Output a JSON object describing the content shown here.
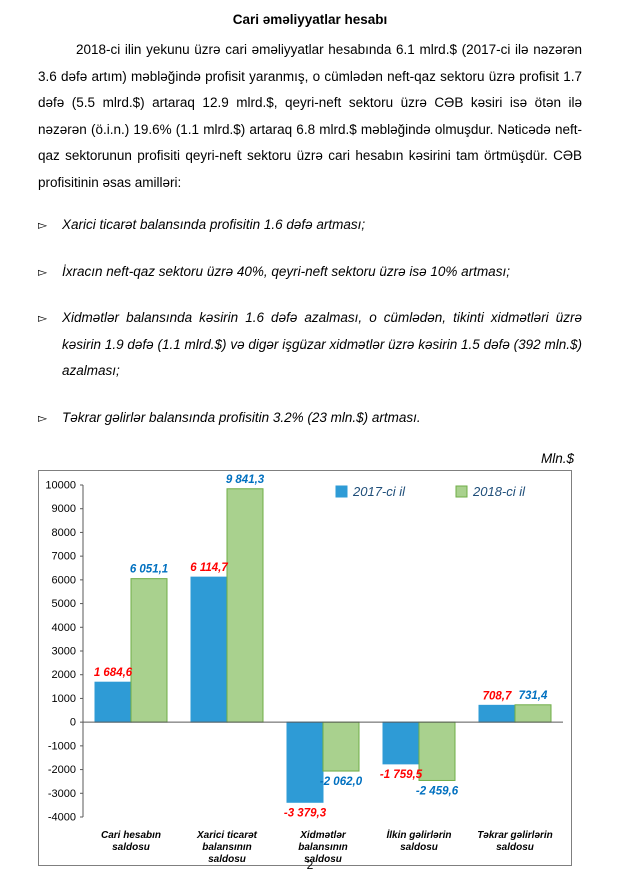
{
  "document": {
    "title": "Cari əməliyyatlar hesabı",
    "paragraph": "2018-ci ilin yekunu üzrə cari əməliyyatlar hesabında 6.1 mlrd.$ (2017-ci ilə nəzərən 3.6 dəfə artım) məbləğində profisit yaranmış, o cümlədən neft-qaz sektoru üzrə profisit 1.7 dəfə (5.5 mlrd.$) artaraq 12.9 mlrd.$, qeyri-neft sektoru üzrə CƏB kəsiri isə ötən ilə nəzərən (ö.i.n.) 19.6% (1.1 mlrd.$) artaraq 6.8 mlrd.$ məbləğində olmuşdur. Nəticədə neft-qaz sektorunun profisiti qeyri-neft sektoru üzrə cari hesabın kəsirini tam örtmüşdür. CƏB profisitinin əsas amilləri:",
    "bullet_marker": "▻",
    "bullets": [
      "Xarici ticarət balansında profisitin 1.6 dəfə artması;",
      "İxracın neft-qaz sektoru üzrə 40%, qeyri-neft sektoru üzrə isə 10% artması;",
      "Xidmətlər balansında kəsirin 1.6 dəfə azalması, o cümlədən, tikinti xidmətləri üzrə kəsirin 1.9 dəfə (1.1 mlrd.$) və digər işgüzar xidmətlər üzrə kəsirin 1.5 dəfə (392 mln.$) azalması;",
      "Təkrar gəlirlər balansında profisitin 3.2% (23 mln.$) artması."
    ],
    "units_label": "Mln.$",
    "page_number": "2"
  },
  "chart_data": {
    "type": "bar",
    "categories": [
      "Cari hesabın saldosu",
      "Xarici ticarət balansının saldosu",
      "Xidmətlər balansının saldosu",
      "İlkin gəlirlərin saldosu",
      "Təkrar gəlirlərin saldosu"
    ],
    "series": [
      {
        "name": "2017-ci il",
        "color": "#2E9BD6",
        "border_color": "#2E9BD6",
        "label_color": "#FF0000",
        "values": [
          1684.6,
          6114.7,
          -3379.3,
          -1759.5,
          708.7
        ],
        "value_labels": [
          "1 684,6",
          "6 114,7",
          "-3 379,3",
          "-1 759,5",
          "708,7"
        ]
      },
      {
        "name": "2018-ci il",
        "color": "#A9D18E",
        "border_color": "#6FAD47",
        "label_color": "#0070C0",
        "values": [
          6051.1,
          9841.3,
          -2062.0,
          -2459.6,
          731.4
        ],
        "value_labels": [
          "6 051,1",
          "9 841,3",
          "-2 062,0",
          "-2 459,6",
          "731,4"
        ]
      }
    ],
    "ylim": [
      -4000,
      10000
    ],
    "ytick_step": 1000,
    "grid": false,
    "legend_position": "top-right-inside",
    "legend_text_color": "#1F4E79",
    "axis_color": "#595959",
    "title": "",
    "xlabel": "",
    "ylabel": ""
  }
}
